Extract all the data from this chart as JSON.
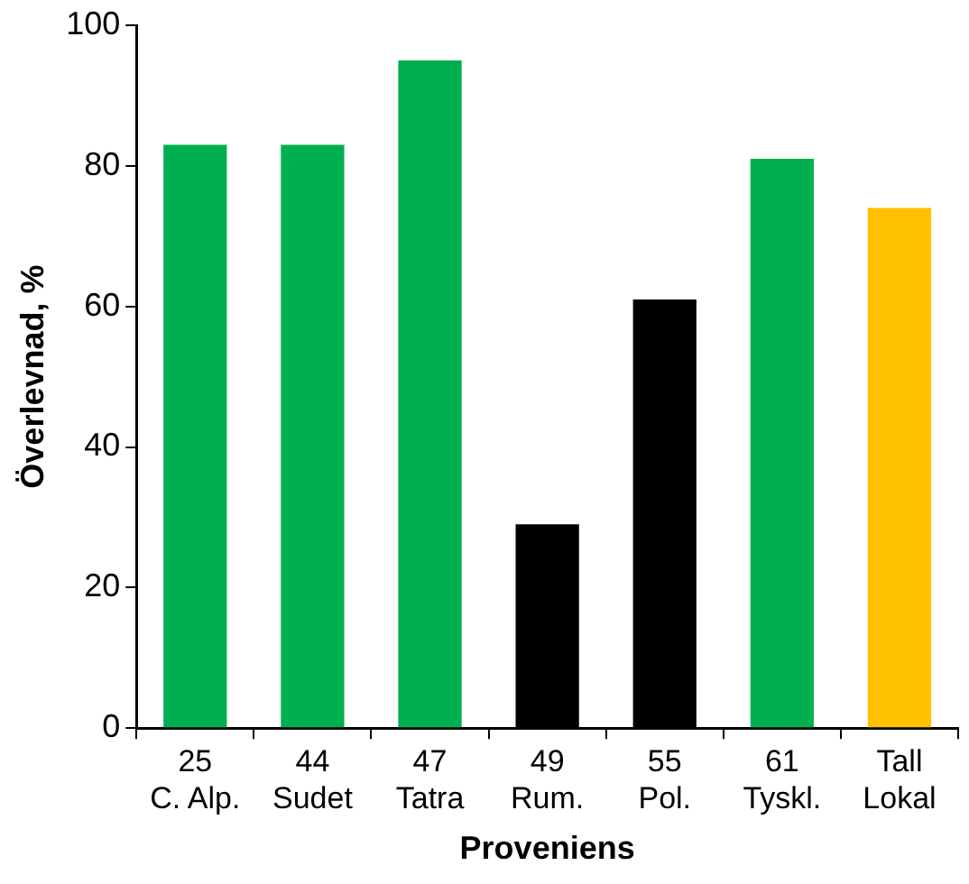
{
  "chart_data": {
    "type": "bar",
    "xlabel": "Proveniens",
    "ylabel": "Överlevnad, %",
    "categories": [
      "25\nC. Alp.",
      "44\nSudet",
      "47\nTatra",
      "49\nRum.",
      "55\nPol.",
      "61\nTyskl.",
      "Tall\nLokal"
    ],
    "values": [
      83,
      83,
      95,
      29,
      61,
      81,
      74
    ],
    "colors": [
      "#00b050",
      "#00b050",
      "#00b050",
      "#000000",
      "#000000",
      "#00b050",
      "#ffc000"
    ],
    "ylim": [
      0,
      100
    ],
    "yticks": [
      0,
      20,
      40,
      60,
      80,
      100
    ],
    "grid": false,
    "legend": false
  }
}
